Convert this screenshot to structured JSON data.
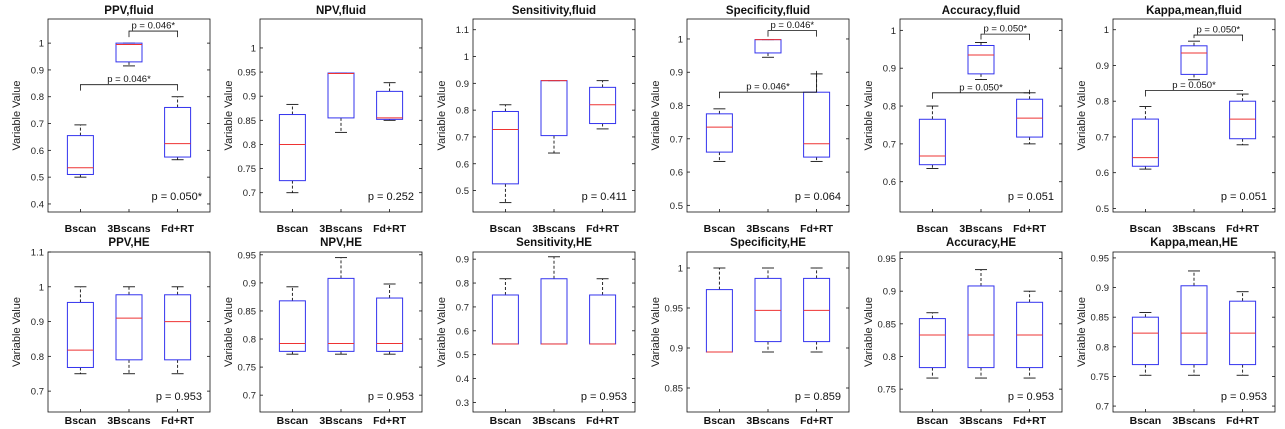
{
  "chart_data": [
    {
      "type": "box",
      "title": "PPV,fluid",
      "ylabel": "Variable Value",
      "categories": [
        "Bscan",
        "3Bscans",
        "Fd+RT"
      ],
      "ylim": [
        0.37,
        1.09
      ],
      "yticks": [
        0.4,
        0.5,
        0.6,
        0.7,
        0.8,
        0.9,
        1
      ],
      "tick_labels": [
        "0.4",
        "0.5",
        "0.6",
        "0.7",
        "0.8",
        "0.9",
        "1"
      ],
      "boxes": [
        {
          "min": 0.5,
          "q1": 0.51,
          "median": 0.535,
          "q3": 0.655,
          "max": 0.695
        },
        {
          "min": 0.915,
          "q1": 0.93,
          "median": 0.995,
          "q3": 1.0,
          "max": 1.0
        },
        {
          "min": 0.565,
          "q1": 0.575,
          "median": 0.625,
          "q3": 0.76,
          "max": 0.8
        }
      ],
      "p_value": "p = 0.050*",
      "comparisons": [
        {
          "from": 1,
          "to": 2,
          "y": 1.045,
          "label": "p = 0.046*"
        },
        {
          "from": 0,
          "to": 2,
          "y": 0.845,
          "label": "p = 0.046*"
        }
      ]
    },
    {
      "type": "box",
      "title": "NPV,fluid",
      "ylabel": "Variable Value",
      "categories": [
        "Bscan",
        "3Bscans",
        "Fd+RT"
      ],
      "ylim": [
        0.66,
        1.06
      ],
      "yticks": [
        0.7,
        0.75,
        0.8,
        0.85,
        0.9,
        0.95,
        1
      ],
      "tick_labels": [
        "0.7",
        "0.75",
        "0.8",
        "0.85",
        "0.9",
        "0.95",
        "1"
      ],
      "boxes": [
        {
          "min": 0.7,
          "q1": 0.725,
          "median": 0.8,
          "q3": 0.862,
          "max": 0.883
        },
        {
          "min": 0.825,
          "q1": 0.855,
          "median": 0.947,
          "q3": 0.948,
          "max": 0.948
        },
        {
          "min": 0.85,
          "q1": 0.852,
          "median": 0.855,
          "q3": 0.91,
          "max": 0.928
        }
      ],
      "p_value": "p = 0.252",
      "comparisons": []
    },
    {
      "type": "box",
      "title": "Sensitivity,fluid",
      "ylabel": "Variable Value",
      "categories": [
        "Bscan",
        "3Bscans",
        "Fd+RT"
      ],
      "ylim": [
        0.42,
        1.14
      ],
      "yticks": [
        0.5,
        0.6,
        0.7,
        0.8,
        0.9,
        1,
        1.1
      ],
      "tick_labels": [
        "0.5",
        "0.6",
        "0.7",
        "0.8",
        "0.9",
        "1",
        "1.1"
      ],
      "boxes": [
        {
          "min": 0.455,
          "q1": 0.525,
          "median": 0.728,
          "q3": 0.795,
          "max": 0.82
        },
        {
          "min": 0.64,
          "q1": 0.705,
          "median": 0.91,
          "q3": 0.91,
          "max": 0.91
        },
        {
          "min": 0.73,
          "q1": 0.75,
          "median": 0.82,
          "q3": 0.885,
          "max": 0.91
        }
      ],
      "p_value": "p = 0.411",
      "comparisons": []
    },
    {
      "type": "box",
      "title": "Specificity,fluid",
      "ylabel": "Variable Value",
      "categories": [
        "Bscan",
        "3Bscans",
        "Fd+RT"
      ],
      "ylim": [
        0.48,
        1.06
      ],
      "yticks": [
        0.5,
        0.6,
        0.7,
        0.8,
        0.9,
        1
      ],
      "tick_labels": [
        "0.5",
        "0.6",
        "0.7",
        "0.8",
        "0.9",
        "1"
      ],
      "boxes": [
        {
          "min": 0.632,
          "q1": 0.66,
          "median": 0.735,
          "q3": 0.775,
          "max": 0.79
        },
        {
          "min": 0.945,
          "q1": 0.958,
          "median": 0.998,
          "q3": 0.998,
          "max": 0.998
        },
        {
          "min": 0.632,
          "q1": 0.645,
          "median": 0.685,
          "q3": 0.84,
          "max": 0.895
        }
      ],
      "p_value": "p = 0.064",
      "comparisons": [
        {
          "from": 1,
          "to": 2,
          "y": 1.025,
          "label": "p = 0.046*"
        },
        {
          "from": 0,
          "to": 2,
          "y": 0.84,
          "label": "p = 0.046*"
        }
      ]
    },
    {
      "type": "box",
      "title": "Accuracy,fluid",
      "ylabel": "Variable Value",
      "categories": [
        "Bscan",
        "3Bscans",
        "Fd+RT"
      ],
      "ylim": [
        0.52,
        1.03
      ],
      "yticks": [
        0.6,
        0.7,
        0.8,
        0.9,
        1
      ],
      "tick_labels": [
        "0.6",
        "0.7",
        "0.8",
        "0.9",
        "1"
      ],
      "boxes": [
        {
          "min": 0.635,
          "q1": 0.645,
          "median": 0.668,
          "q3": 0.765,
          "max": 0.8
        },
        {
          "min": 0.87,
          "q1": 0.885,
          "median": 0.935,
          "q3": 0.96,
          "max": 0.968
        },
        {
          "min": 0.7,
          "q1": 0.718,
          "median": 0.768,
          "q3": 0.818,
          "max": 0.835
        }
      ],
      "p_value": "p = 0.051",
      "comparisons": [
        {
          "from": 1,
          "to": 2,
          "y": 0.99,
          "label": "p = 0.050*"
        },
        {
          "from": 0,
          "to": 2,
          "y": 0.835,
          "label": "p = 0.050*"
        }
      ]
    },
    {
      "type": "box",
      "title": "Kappa,mean,fluid",
      "ylabel": "Variable Value",
      "categories": [
        "Bscan",
        "3Bscans",
        "Fd+RT"
      ],
      "ylim": [
        0.49,
        1.03
      ],
      "yticks": [
        0.5,
        0.6,
        0.7,
        0.8,
        0.9,
        1
      ],
      "tick_labels": [
        "0.5",
        "0.6",
        "0.7",
        "0.8",
        "0.9",
        "1"
      ],
      "boxes": [
        {
          "min": 0.61,
          "q1": 0.618,
          "median": 0.642,
          "q3": 0.75,
          "max": 0.785
        },
        {
          "min": 0.86,
          "q1": 0.875,
          "median": 0.935,
          "q3": 0.955,
          "max": 0.968
        },
        {
          "min": 0.678,
          "q1": 0.695,
          "median": 0.75,
          "q3": 0.8,
          "max": 0.82
        }
      ],
      "p_value": "p = 0.051",
      "comparisons": [
        {
          "from": 1,
          "to": 2,
          "y": 0.985,
          "label": "p = 0.050*"
        },
        {
          "from": 0,
          "to": 2,
          "y": 0.83,
          "label": "p = 0.050*"
        }
      ]
    },
    {
      "type": "box",
      "title": "PPV,HE",
      "ylabel": "Variable Value",
      "categories": [
        "Bscan",
        "3Bscans",
        "Fd+RT"
      ],
      "ylim": [
        0.64,
        1.1
      ],
      "yticks": [
        0.7,
        0.8,
        0.9,
        1,
        1.1
      ],
      "tick_labels": [
        "0.7",
        "0.8",
        "0.9",
        "1",
        "1.1"
      ],
      "boxes": [
        {
          "min": 0.75,
          "q1": 0.768,
          "median": 0.818,
          "q3": 0.955,
          "max": 1.0
        },
        {
          "min": 0.75,
          "q1": 0.79,
          "median": 0.91,
          "q3": 0.977,
          "max": 1.0
        },
        {
          "min": 0.75,
          "q1": 0.79,
          "median": 0.9,
          "q3": 0.977,
          "max": 1.0
        }
      ],
      "p_value": "p = 0.953",
      "comparisons": []
    },
    {
      "type": "box",
      "title": "NPV,HE",
      "ylabel": "Variable Value",
      "categories": [
        "Bscan",
        "3Bscans",
        "Fd+RT"
      ],
      "ylim": [
        0.67,
        0.955
      ],
      "yticks": [
        0.7,
        0.75,
        0.8,
        0.85,
        0.9,
        0.95
      ],
      "tick_labels": [
        "0.7",
        "0.75",
        "0.8",
        "0.85",
        "0.9",
        "0.95"
      ],
      "boxes": [
        {
          "min": 0.773,
          "q1": 0.778,
          "median": 0.792,
          "q3": 0.868,
          "max": 0.893
        },
        {
          "min": 0.773,
          "q1": 0.778,
          "median": 0.792,
          "q3": 0.908,
          "max": 0.945
        },
        {
          "min": 0.773,
          "q1": 0.778,
          "median": 0.792,
          "q3": 0.873,
          "max": 0.898
        }
      ],
      "p_value": "p = 0.953",
      "comparisons": []
    },
    {
      "type": "box",
      "title": "Sensitivity,HE",
      "ylabel": "Variable Value",
      "categories": [
        "Bscan",
        "3Bscans",
        "Fd+RT"
      ],
      "ylim": [
        0.26,
        0.93
      ],
      "yticks": [
        0.3,
        0.4,
        0.5,
        0.6,
        0.7,
        0.8,
        0.9
      ],
      "tick_labels": [
        "0.3",
        "0.4",
        "0.5",
        "0.6",
        "0.7",
        "0.8",
        "0.9"
      ],
      "boxes": [
        {
          "min": 0.545,
          "q1": 0.545,
          "median": 0.545,
          "q3": 0.75,
          "max": 0.818
        },
        {
          "min": 0.545,
          "q1": 0.545,
          "median": 0.545,
          "q3": 0.818,
          "max": 0.91
        },
        {
          "min": 0.545,
          "q1": 0.545,
          "median": 0.545,
          "q3": 0.75,
          "max": 0.818
        }
      ],
      "p_value": "p = 0.953",
      "comparisons": []
    },
    {
      "type": "box",
      "title": "Specificity,HE",
      "ylabel": "Variable Value",
      "categories": [
        "Bscan",
        "3Bscans",
        "Fd+RT"
      ],
      "ylim": [
        0.82,
        1.02
      ],
      "yticks": [
        0.85,
        0.9,
        0.95,
        1
      ],
      "tick_labels": [
        "0.85",
        "0.9",
        "0.95",
        "1"
      ],
      "boxes": [
        {
          "min": 0.895,
          "q1": 0.895,
          "median": 0.895,
          "q3": 0.973,
          "max": 1.0
        },
        {
          "min": 0.895,
          "q1": 0.908,
          "median": 0.947,
          "q3": 0.987,
          "max": 1.0
        },
        {
          "min": 0.895,
          "q1": 0.908,
          "median": 0.947,
          "q3": 0.987,
          "max": 1.0
        }
      ],
      "p_value": "p = 0.859",
      "comparisons": []
    },
    {
      "type": "box",
      "title": "Accuracy,HE",
      "ylabel": "Variable Value",
      "categories": [
        "Bscan",
        "3Bscans",
        "Fd+RT"
      ],
      "ylim": [
        0.715,
        0.96
      ],
      "yticks": [
        0.75,
        0.8,
        0.85,
        0.9,
        0.95
      ],
      "tick_labels": [
        "0.75",
        "0.8",
        "0.85",
        "0.9",
        "0.95"
      ],
      "boxes": [
        {
          "min": 0.767,
          "q1": 0.783,
          "median": 0.833,
          "q3": 0.858,
          "max": 0.867
        },
        {
          "min": 0.767,
          "q1": 0.783,
          "median": 0.833,
          "q3": 0.908,
          "max": 0.933
        },
        {
          "min": 0.767,
          "q1": 0.783,
          "median": 0.833,
          "q3": 0.883,
          "max": 0.9
        }
      ],
      "p_value": "p = 0.953",
      "comparisons": []
    },
    {
      "type": "box",
      "title": "Kappa,mean,HE",
      "ylabel": "Variable Value",
      "categories": [
        "Bscan",
        "3Bscans",
        "Fd+RT"
      ],
      "ylim": [
        0.69,
        0.96
      ],
      "yticks": [
        0.7,
        0.75,
        0.8,
        0.85,
        0.9,
        0.95
      ],
      "tick_labels": [
        "0.7",
        "0.75",
        "0.8",
        "0.85",
        "0.9",
        "0.95"
      ],
      "boxes": [
        {
          "min": 0.752,
          "q1": 0.77,
          "median": 0.823,
          "q3": 0.85,
          "max": 0.858
        },
        {
          "min": 0.752,
          "q1": 0.77,
          "median": 0.823,
          "q3": 0.903,
          "max": 0.928
        },
        {
          "min": 0.752,
          "q1": 0.77,
          "median": 0.823,
          "q3": 0.877,
          "max": 0.893
        }
      ],
      "p_value": "p = 0.953",
      "comparisons": []
    }
  ],
  "colors": {
    "box": "#3333ee",
    "median": "#ee3333",
    "whisker": "#111111",
    "axis": "#111111"
  }
}
